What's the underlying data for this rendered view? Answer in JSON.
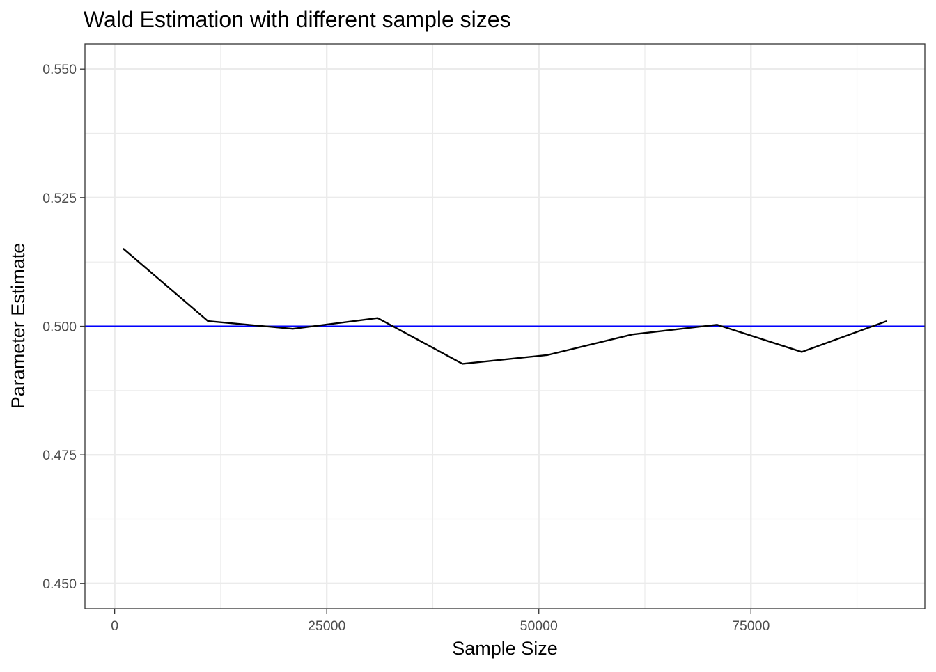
{
  "chart_data": {
    "type": "line",
    "title": "Wald Estimation with different sample sizes",
    "xlabel": "Sample Size",
    "ylabel": "Parameter Estimate",
    "xlim": [
      -3500,
      95500
    ],
    "ylim": [
      0.4451,
      0.5549
    ],
    "x_ticks": [
      0,
      25000,
      50000,
      75000
    ],
    "x_tick_labels": [
      "0",
      "25000",
      "50000",
      "75000"
    ],
    "x_minor_ticks": [
      12500,
      37500,
      62500,
      87500
    ],
    "y_ticks": [
      0.45,
      0.475,
      0.5,
      0.525,
      0.55
    ],
    "y_tick_labels": [
      "0.450",
      "0.475",
      "0.500",
      "0.525",
      "0.550"
    ],
    "y_minor_ticks": [
      0.4625,
      0.4875,
      0.5125,
      0.5375
    ],
    "grid": true,
    "legend": "none",
    "series": [
      {
        "color": "#000000",
        "x": [
          1000,
          11000,
          21000,
          31000,
          41000,
          51000,
          61000,
          71000,
          81000,
          91000
        ],
        "y": [
          0.5151,
          0.501,
          0.4995,
          0.5016,
          0.4927,
          0.4944,
          0.4984,
          0.5003,
          0.495,
          0.501
        ]
      }
    ],
    "reference_line": {
      "orientation": "horizontal",
      "y": 0.5,
      "color": "#0000ff"
    }
  }
}
